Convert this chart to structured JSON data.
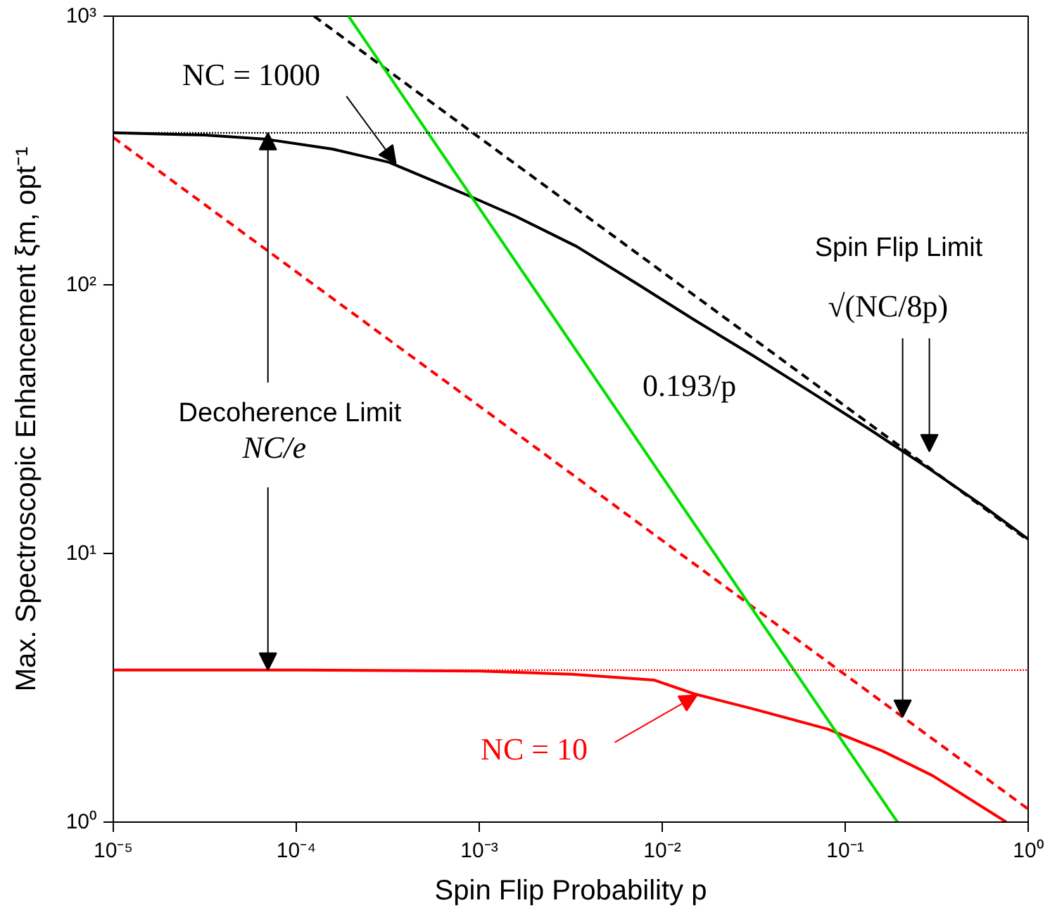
{
  "chart_data": {
    "type": "line",
    "xlabel": "Spin Flip Probability p",
    "ylabel": "Max. Spectroscopic Enhancement ξm, opt⁻¹",
    "log": "xy",
    "xlim": [
      1e-05,
      1
    ],
    "ylim": [
      1,
      1000
    ],
    "xticks": [
      {
        "value": 1e-05,
        "label": "10⁻⁵"
      },
      {
        "value": 0.0001,
        "label": "10⁻⁴"
      },
      {
        "value": 0.001,
        "label": "10⁻³"
      },
      {
        "value": 0.01,
        "label": "10⁻²"
      },
      {
        "value": 0.1,
        "label": "10⁻¹"
      },
      {
        "value": 1,
        "label": "10⁰"
      }
    ],
    "yticks": [
      {
        "value": 1,
        "label": "10⁰"
      },
      {
        "value": 10,
        "label": "10¹"
      },
      {
        "value": 100,
        "label": "10²"
      },
      {
        "value": 1000,
        "label": "10³"
      }
    ],
    "series": [
      {
        "color": "#000000",
        "line_style": "solid",
        "x": [
          1e-05,
          3.16e-05,
          6.7e-05,
          0.000158,
          0.00032,
          0.00087,
          0.00158,
          0.0034,
          0.0071,
          0.015,
          0.0316,
          0.066,
          0.141,
          0.29,
          0.562,
          1
        ],
        "values": [
          368,
          361,
          349,
          320,
          286,
          215,
          180,
          139,
          102,
          74,
          54.3,
          39.6,
          28.5,
          20.6,
          15.1,
          11.3
        ]
      },
      {
        "color": "#000000",
        "line_style": "dashed",
        "x": [
          0.000125,
          1
        ],
        "values": [
          1000,
          11.18
        ]
      },
      {
        "color": "#ff0000",
        "line_style": "solid",
        "x": [
          1e-05,
          0.0001,
          0.001,
          0.0032,
          0.009,
          0.015,
          0.032,
          0.08,
          0.16,
          0.3,
          0.76
        ],
        "values": [
          3.68,
          3.68,
          3.65,
          3.55,
          3.38,
          3.0,
          2.63,
          2.22,
          1.84,
          1.49,
          1.0
        ]
      },
      {
        "color": "#ff0000",
        "line_style": "dashed",
        "x": [
          1e-05,
          1
        ],
        "values": [
          353.6,
          1.118
        ]
      },
      {
        "color": "#00e000",
        "line_style": "solid",
        "x": [
          0.000193,
          0.193
        ],
        "values": [
          1000,
          1
        ]
      }
    ],
    "ref_lines": [
      {
        "axis": "y",
        "value": 368,
        "label": null,
        "color": "#000000",
        "line_style": "dotted"
      },
      {
        "axis": "y",
        "value": 3.68,
        "label": null,
        "color": "#ff0000",
        "line_style": "dotted"
      }
    ],
    "annotations": [
      {
        "text": "NC = 1000",
        "x": 0.00035,
        "y": 283
      },
      {
        "text": "Decoherence Limit",
        "x": 7e-05,
        "y": 368
      },
      {
        "text": "NC/e",
        "x": 7e-05,
        "y": 3.68
      },
      "Spin Flip Limit",
      {
        "text": "√(NC/8p)",
        "x": 0.206,
        "y": 2.46
      },
      {
        "text": "0.193/p",
        "x": 0.005,
        "y": 38.6
      },
      {
        "text": "NC = 10",
        "x": 0.0155,
        "y": 2.97
      }
    ]
  }
}
